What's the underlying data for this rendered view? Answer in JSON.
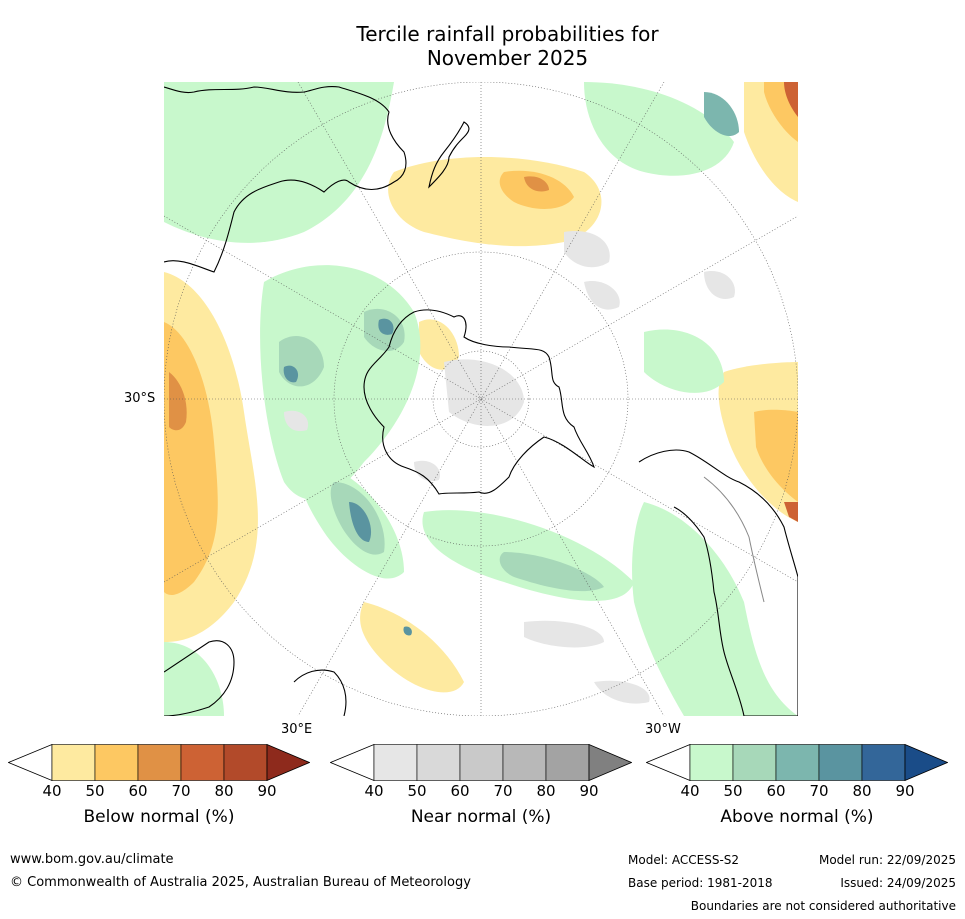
{
  "title": {
    "line1": "Tercile rainfall probabilities for",
    "line2": "November 2025"
  },
  "map": {
    "projection": "south-polar-stereographic",
    "lat_label": "30°S",
    "lon_label_east": "30°E",
    "lon_label_west": "30°W"
  },
  "legends": [
    {
      "label": "Below normal (%)",
      "ticks": [
        "40",
        "50",
        "60",
        "70",
        "80",
        "90"
      ],
      "colors": [
        "#ffffff",
        "#feeaa0",
        "#fdc862",
        "#e09145",
        "#cd6234",
        "#b24a2a",
        "#8e2a1c"
      ]
    },
    {
      "label": "Near normal (%)",
      "ticks": [
        "40",
        "50",
        "60",
        "70",
        "80",
        "90"
      ],
      "colors": [
        "#ffffff",
        "#e6e6e6",
        "#d9d9d9",
        "#c9c9c9",
        "#b8b8b8",
        "#a3a3a3",
        "#808080"
      ]
    },
    {
      "label": "Above normal (%)",
      "ticks": [
        "40",
        "50",
        "60",
        "70",
        "80",
        "90"
      ],
      "colors": [
        "#ffffff",
        "#c8f8cc",
        "#a7d8b9",
        "#7cb6ae",
        "#5a94a0",
        "#336699",
        "#1a4c88"
      ]
    }
  ],
  "footer": {
    "url": "www.bom.gov.au/climate",
    "copyright": "© Commonwealth of Australia 2025, Australian Bureau of Meteorology",
    "model": "Model: ACCESS-S2",
    "base_period": "Base period: 1981-2018",
    "model_run": "Model run: 22/09/2025",
    "issued": "Issued: 24/09/2025",
    "disclaimer": "Boundaries are not considered authoritative"
  }
}
